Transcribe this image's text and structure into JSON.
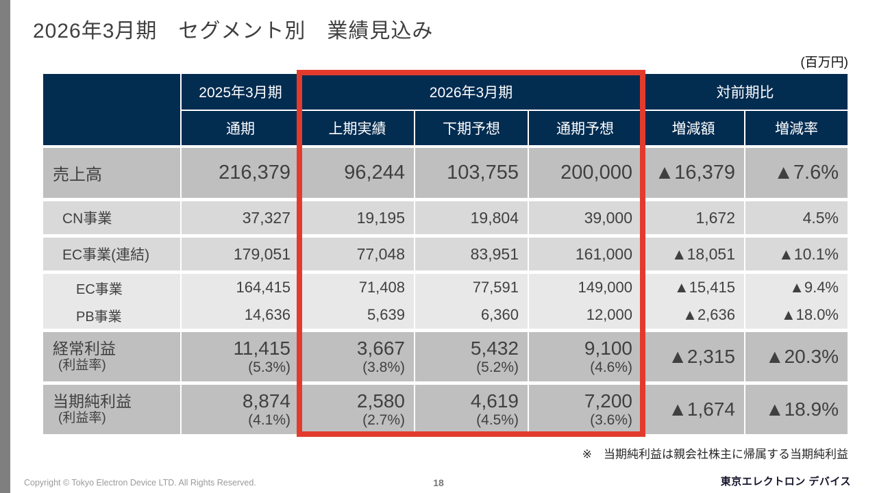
{
  "slide": {
    "title": "2026年3月期　セグメント別　業績見込み",
    "unit_label": "(百万円)",
    "footnote": "※　当期純利益は親会社株主に帰属する当期純利益",
    "footer": {
      "copyright": "Copyright © Tokyo Electron Device LTD. All Rights Reserved.",
      "page_number": "18",
      "logo_text": "東京エレクトロン デバイス"
    },
    "colors": {
      "header_navy": "#032C51",
      "highlight_red": "#E23B2E",
      "row_major_bg": "#BFBFBF",
      "row_sub_bg": "#D9D9D9",
      "row_subsub_bg": "#E8E8E8",
      "side_bar_gray": "#7F7F7F"
    }
  },
  "table": {
    "header": {
      "group_2025": "2025年3月期",
      "group_2026": "2026年3月期",
      "group_yoy": "対前期比",
      "sub_full_2025": "通期",
      "sub_h1_actual": "上期実績",
      "sub_h2_forecast": "下期予想",
      "sub_full_forecast": "通期予想",
      "sub_change_amount": "増減額",
      "sub_change_rate": "増減率"
    },
    "rows": [
      {
        "label": "売上高",
        "values": [
          "216,379",
          "96,244",
          "103,755",
          "200,000",
          "▲16,379",
          "▲7.6%"
        ]
      },
      {
        "label": "CN事業",
        "values": [
          "37,327",
          "19,195",
          "19,804",
          "39,000",
          "1,672",
          "4.5%"
        ]
      },
      {
        "label": "EC事業(連結)",
        "values": [
          "179,051",
          "77,048",
          "83,951",
          "161,000",
          "▲18,051",
          "▲10.1%"
        ]
      },
      {
        "label": "EC事業",
        "values": [
          "164,415",
          "71,408",
          "77,591",
          "149,000",
          "▲15,415",
          "▲9.4%"
        ]
      },
      {
        "label": "PB事業",
        "values": [
          "14,636",
          "5,639",
          "6,360",
          "12,000",
          "▲2,636",
          "▲18.0%"
        ]
      },
      {
        "label": "経常利益",
        "label_sub": "(利益率)",
        "values": [
          "11,415",
          "3,667",
          "5,432",
          "9,100",
          "▲2,315",
          "▲20.3%"
        ],
        "subs": [
          "(5.3%)",
          "(3.8%)",
          "(5.2%)",
          "(4.6%)"
        ]
      },
      {
        "label": "当期純利益",
        "label_sub": "(利益率)",
        "values": [
          "8,874",
          "2,580",
          "4,619",
          "7,200",
          "▲1,674",
          "▲18.9%"
        ],
        "subs": [
          "(4.1%)",
          "(2.7%)",
          "(4.5%)",
          "(3.6%)"
        ]
      }
    ]
  }
}
